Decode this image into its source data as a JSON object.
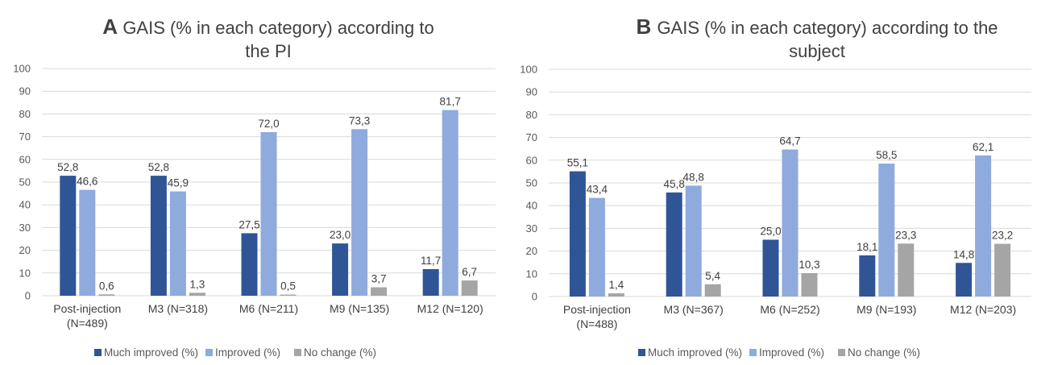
{
  "chart_data": [
    {
      "type": "bar",
      "panel_letter": "A",
      "title_lines": [
        "GAIS (% in each category) according to",
        "the PI"
      ],
      "categories": [
        [
          "Post-injection",
          "(N=489)"
        ],
        [
          "M3 (N=318)"
        ],
        [
          "M6 (N=211)"
        ],
        [
          "M9 (N=135)"
        ],
        [
          "M12 (N=120)"
        ]
      ],
      "series": [
        {
          "name": "Much improved (%)",
          "color": "#2f5597",
          "values": [
            52.8,
            52.8,
            27.5,
            23.0,
            11.7
          ],
          "labels": [
            "52,8",
            "52,8",
            "27,5",
            "23,0",
            "11,7"
          ]
        },
        {
          "name": "Improved (%)",
          "color": "#8faadc",
          "values": [
            46.6,
            45.9,
            72.0,
            73.3,
            81.7
          ],
          "labels": [
            "46,6",
            "45,9",
            "72,0",
            "73,3",
            "81,7"
          ]
        },
        {
          "name": "No change (%)",
          "color": "#a5a5a5",
          "values": [
            0.6,
            1.3,
            0.5,
            3.7,
            6.7
          ],
          "labels": [
            "0,6",
            "1,3",
            "0,5",
            "3,7",
            "6,7"
          ]
        }
      ],
      "yticks": [
        "0",
        "10",
        "20",
        "30",
        "40",
        "50",
        "60",
        "70",
        "80",
        "90",
        "100"
      ],
      "ylim": [
        0,
        100
      ],
      "grid": true,
      "legend": "bottom"
    },
    {
      "type": "bar",
      "panel_letter": "B",
      "title_lines": [
        "GAIS (% in each category) according to the",
        "subject"
      ],
      "categories": [
        [
          "Post-injection",
          "(N=488)"
        ],
        [
          "M3 (N=367)"
        ],
        [
          "M6 (N=252)"
        ],
        [
          "M9 (N=193)"
        ],
        [
          "M12 (N=203)"
        ]
      ],
      "series": [
        {
          "name": "Much improved (%)",
          "color": "#2f5597",
          "values": [
            55.1,
            45.8,
            25.0,
            18.1,
            14.8
          ],
          "labels": [
            "55,1",
            "45,8",
            "25,0",
            "18,1",
            "14,8"
          ]
        },
        {
          "name": "Improved (%)",
          "color": "#8faadc",
          "values": [
            43.4,
            48.8,
            64.7,
            58.5,
            62.1
          ],
          "labels": [
            "43,4",
            "48,8",
            "64,7",
            "58,5",
            "62,1"
          ]
        },
        {
          "name": "No change (%)",
          "color": "#a5a5a5",
          "values": [
            1.4,
            5.4,
            10.3,
            23.3,
            23.2
          ],
          "labels": [
            "1,4",
            "5,4",
            "10,3",
            "23,3",
            "23,2"
          ]
        }
      ],
      "yticks": [
        "0",
        "10",
        "20",
        "30",
        "40",
        "50",
        "60",
        "70",
        "80",
        "90",
        "100"
      ],
      "ylim": [
        0,
        100
      ],
      "grid": true,
      "legend": "bottom"
    }
  ]
}
